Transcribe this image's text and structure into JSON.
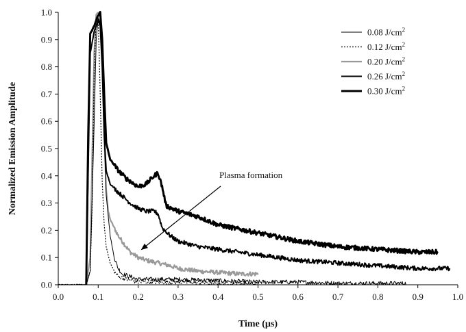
{
  "chart_data": {
    "type": "line",
    "title": "",
    "xlabel": "Time (µs)",
    "ylabel": "Normalized Emission Amplitude",
    "xlim": [
      0.0,
      1.0
    ],
    "ylim": [
      0.0,
      1.0
    ],
    "x_ticks": [
      "0.0",
      "0.1",
      "0.2",
      "0.3",
      "0.4",
      "0.5",
      "0.6",
      "0.7",
      "0.8",
      "0.9",
      "1.0"
    ],
    "y_ticks": [
      "0.0",
      "0.1",
      "0.2",
      "0.3",
      "0.4",
      "0.5",
      "0.6",
      "0.7",
      "0.8",
      "0.9",
      "1.0"
    ],
    "grid": false,
    "legend_position": "top-right",
    "annotation": {
      "text": "Plasma formation",
      "points_to": [
        0.2,
        0.12
      ]
    },
    "series": [
      {
        "name": "0.08 J/cm²",
        "legend_base": "0.08 J/cm",
        "legend_sup": "2",
        "style": "thin-solid",
        "color": "#000000",
        "x": [
          0.0,
          0.07,
          0.08,
          0.09,
          0.095,
          0.1,
          0.105,
          0.11,
          0.115,
          0.12,
          0.13,
          0.14,
          0.15,
          0.16,
          0.18,
          0.2,
          0.25,
          0.3,
          0.4,
          0.5,
          0.6,
          0.7,
          0.8,
          0.87
        ],
        "y": [
          0.0,
          0.0,
          0.05,
          0.6,
          0.9,
          0.98,
          0.96,
          0.8,
          0.55,
          0.33,
          0.18,
          0.1,
          0.06,
          0.04,
          0.03,
          0.02,
          0.02,
          0.02,
          0.015,
          0.01,
          0.01,
          0.005,
          0.005,
          0.005
        ]
      },
      {
        "name": "0.12 J/cm²",
        "legend_base": "0.12 J/cm",
        "legend_sup": "2",
        "style": "dotted",
        "color": "#000000",
        "x": [
          0.0,
          0.07,
          0.08,
          0.085,
          0.09,
          0.095,
          0.1,
          0.105,
          0.11,
          0.115,
          0.12,
          0.13,
          0.14,
          0.15,
          0.17,
          0.2,
          0.25,
          0.3,
          0.4,
          0.5
        ],
        "y": [
          0.0,
          0.0,
          0.05,
          0.3,
          0.8,
          0.98,
          0.98,
          0.7,
          0.38,
          0.22,
          0.14,
          0.08,
          0.05,
          0.03,
          0.02,
          0.01,
          0.01,
          0.01,
          0.005,
          0.005
        ]
      },
      {
        "name": "0.20 J/cm²",
        "legend_base": "0.20 J/cm",
        "legend_sup": "2",
        "style": "gray-medium",
        "color": "#999999",
        "x": [
          0.07,
          0.08,
          0.09,
          0.095,
          0.1,
          0.105,
          0.11,
          0.115,
          0.12,
          0.125,
          0.13,
          0.14,
          0.15,
          0.16,
          0.17,
          0.18,
          0.2,
          0.22,
          0.25,
          0.28,
          0.3,
          0.35,
          0.4,
          0.45,
          0.5
        ],
        "y": [
          0.0,
          0.1,
          0.85,
          0.99,
          1.0,
          0.98,
          0.85,
          0.55,
          0.35,
          0.27,
          0.24,
          0.21,
          0.18,
          0.16,
          0.14,
          0.12,
          0.1,
          0.09,
          0.08,
          0.07,
          0.06,
          0.05,
          0.045,
          0.04,
          0.04
        ]
      },
      {
        "name": "0.26 J/cm²",
        "legend_base": "0.26 J/cm",
        "legend_sup": "2",
        "style": "medium-solid",
        "color": "#000000",
        "x": [
          0.07,
          0.08,
          0.09,
          0.1,
          0.105,
          0.11,
          0.115,
          0.12,
          0.13,
          0.15,
          0.18,
          0.2,
          0.22,
          0.24,
          0.25,
          0.26,
          0.28,
          0.3,
          0.35,
          0.4,
          0.5,
          0.6,
          0.7,
          0.8,
          0.9,
          0.98
        ],
        "y": [
          0.0,
          0.85,
          0.93,
          0.97,
          0.95,
          0.8,
          0.55,
          0.42,
          0.37,
          0.34,
          0.3,
          0.28,
          0.27,
          0.27,
          0.26,
          0.21,
          0.18,
          0.16,
          0.14,
          0.13,
          0.11,
          0.09,
          0.08,
          0.07,
          0.06,
          0.06
        ]
      },
      {
        "name": "0.30 J/cm²",
        "legend_base": "0.30 J/cm",
        "legend_sup": "2",
        "style": "thick-solid",
        "color": "#000000",
        "x": [
          0.07,
          0.075,
          0.08,
          0.09,
          0.1,
          0.105,
          0.11,
          0.115,
          0.12,
          0.13,
          0.14,
          0.15,
          0.17,
          0.2,
          0.22,
          0.24,
          0.25,
          0.26,
          0.27,
          0.3,
          0.35,
          0.4,
          0.5,
          0.6,
          0.7,
          0.8,
          0.9,
          0.95
        ],
        "y": [
          0.0,
          0.55,
          0.92,
          0.95,
          0.99,
          1.0,
          0.9,
          0.7,
          0.52,
          0.46,
          0.44,
          0.42,
          0.39,
          0.36,
          0.37,
          0.4,
          0.41,
          0.36,
          0.29,
          0.27,
          0.25,
          0.22,
          0.19,
          0.16,
          0.14,
          0.13,
          0.12,
          0.12
        ]
      }
    ]
  }
}
